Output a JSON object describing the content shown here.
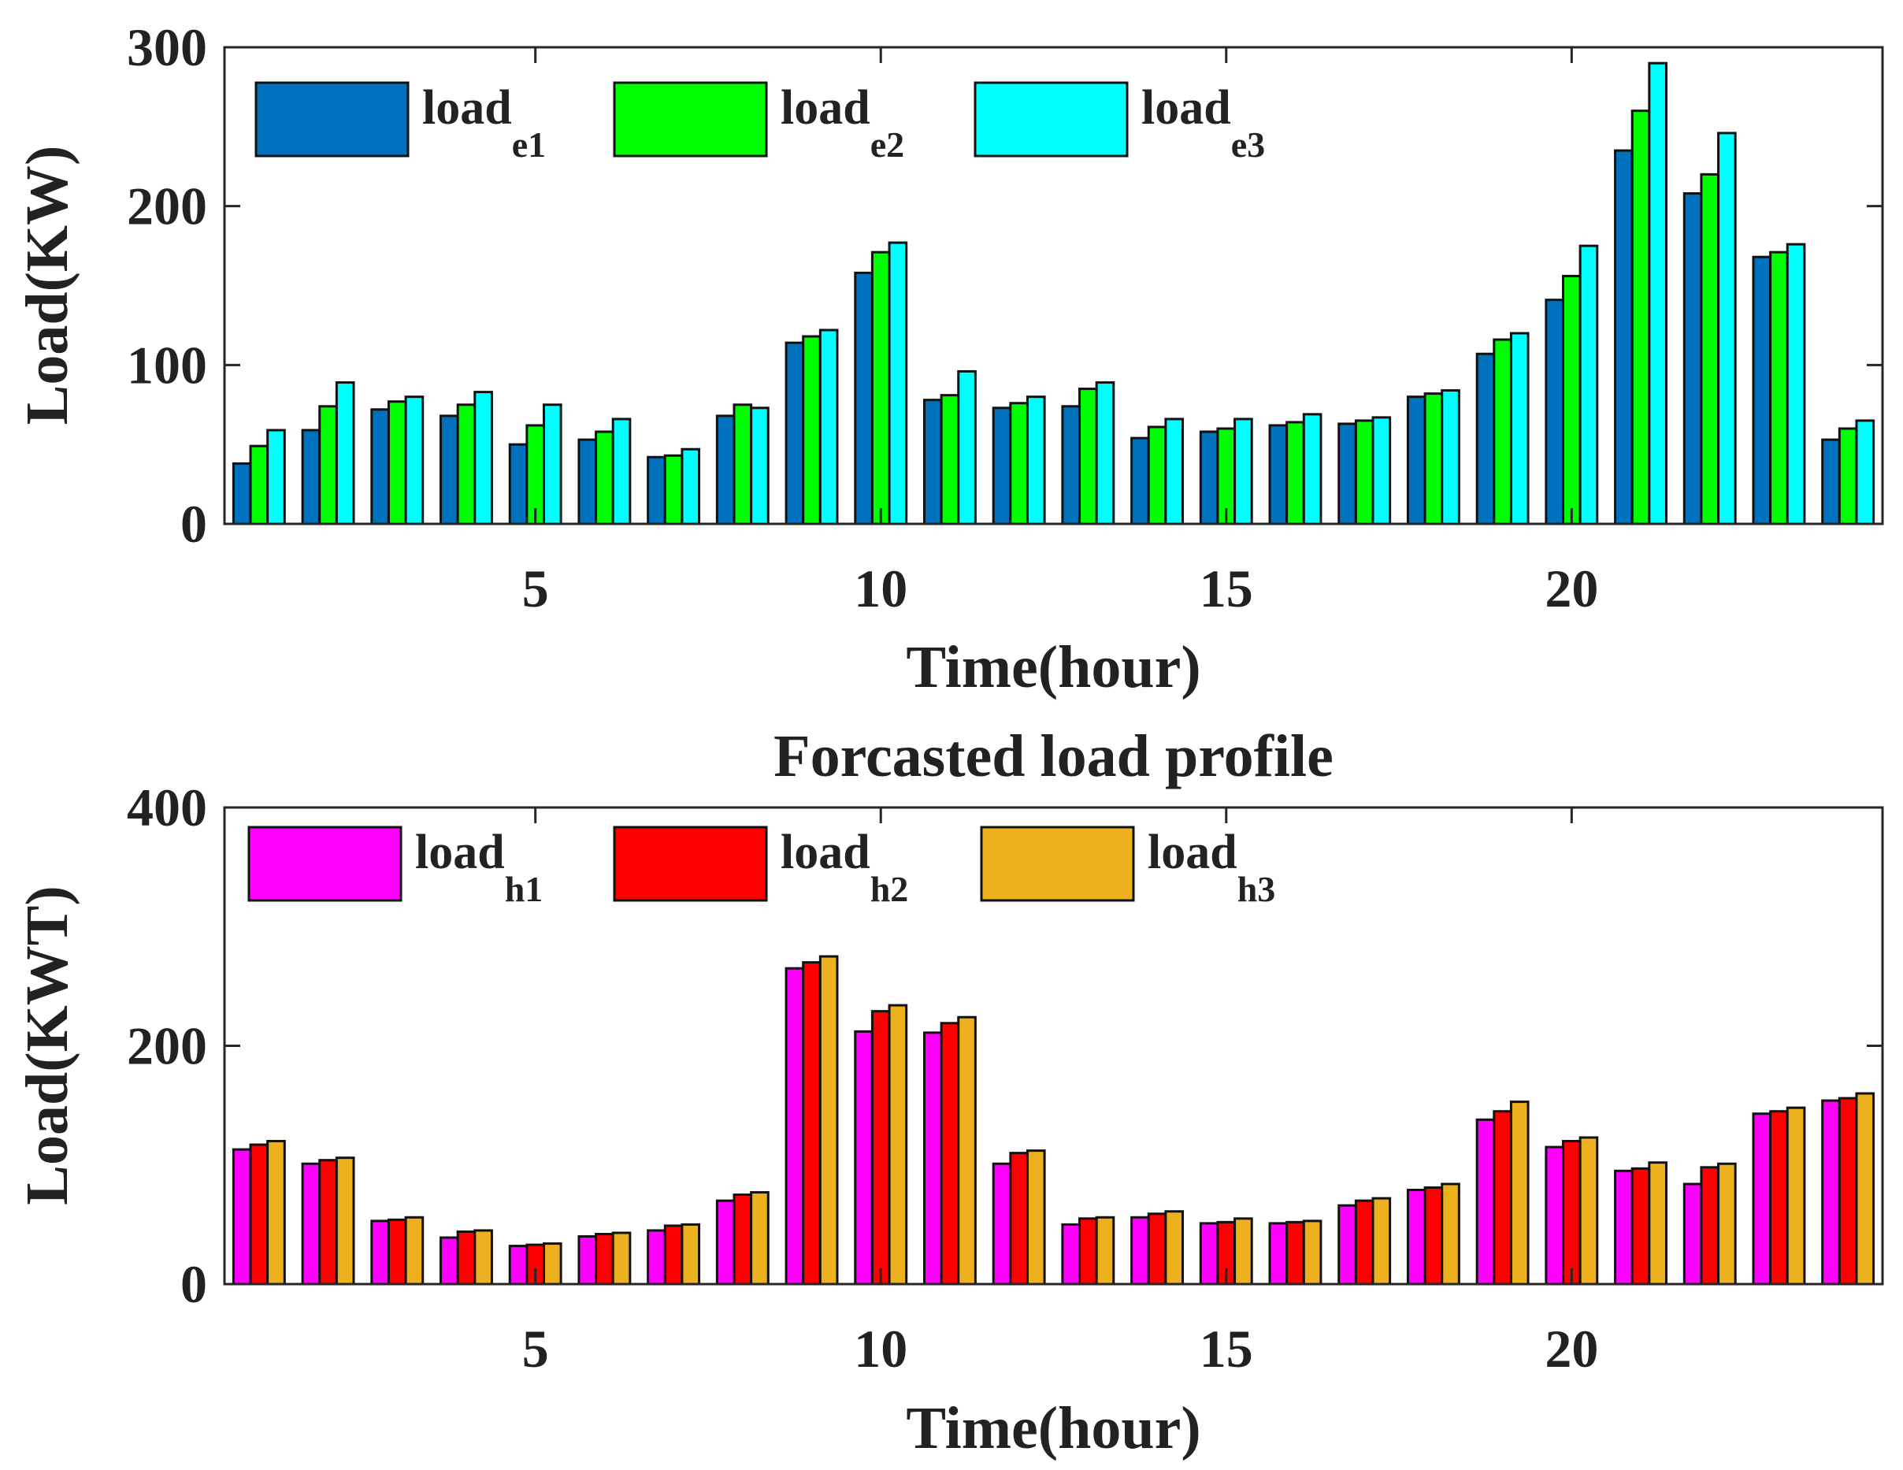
{
  "chart_data": [
    {
      "type": "bar",
      "title": "",
      "xlabel": "Time(hour)",
      "ylabel": "Load(KW)",
      "ylim": [
        0,
        300
      ],
      "yticks": [
        0,
        100,
        200,
        300
      ],
      "xlim": [
        0.5,
        24.5
      ],
      "xticks": [
        5,
        10,
        15,
        20
      ],
      "categories": [
        1,
        2,
        3,
        4,
        5,
        6,
        7,
        8,
        9,
        10,
        11,
        12,
        13,
        14,
        15,
        16,
        17,
        18,
        19,
        20,
        21,
        22,
        23,
        24
      ],
      "series": [
        {
          "name": "load_e1",
          "label": "load",
          "sub": "e1",
          "color": "#0072BD",
          "values": [
            38,
            59,
            72,
            68,
            50,
            53,
            42,
            68,
            114,
            158,
            78,
            73,
            74,
            54,
            58,
            62,
            63,
            80,
            107,
            141,
            235,
            208,
            168,
            53
          ]
        },
        {
          "name": "load_e2",
          "label": "load",
          "sub": "e2",
          "color": "#00FF00",
          "values": [
            49,
            74,
            77,
            75,
            62,
            58,
            43,
            75,
            118,
            171,
            81,
            76,
            85,
            61,
            60,
            64,
            65,
            82,
            116,
            156,
            260,
            220,
            171,
            60
          ]
        },
        {
          "name": "load_e3",
          "label": "load",
          "sub": "e3",
          "color": "#00FFFF",
          "values": [
            59,
            89,
            80,
            83,
            75,
            66,
            47,
            73,
            122,
            177,
            96,
            80,
            89,
            66,
            66,
            69,
            67,
            84,
            120,
            175,
            290,
            246,
            176,
            65
          ]
        }
      ],
      "legend_position": "top-left"
    },
    {
      "type": "bar",
      "title": "Forcasted load profile",
      "xlabel": "Time(hour)",
      "ylabel": "Load(KWT)",
      "ylim": [
        0,
        400
      ],
      "yticks": [
        0,
        200,
        400
      ],
      "xlim": [
        0.5,
        24.5
      ],
      "xticks": [
        5,
        10,
        15,
        20
      ],
      "categories": [
        1,
        2,
        3,
        4,
        5,
        6,
        7,
        8,
        9,
        10,
        11,
        12,
        13,
        14,
        15,
        16,
        17,
        18,
        19,
        20,
        21,
        22,
        23,
        24
      ],
      "series": [
        {
          "name": "load_h1",
          "label": "load",
          "sub": "h1",
          "color": "#FF00FF",
          "values": [
            113,
            101,
            53,
            39,
            32,
            40,
            45,
            70,
            265,
            212,
            211,
            101,
            50,
            56,
            51,
            51,
            66,
            79,
            138,
            115,
            95,
            84,
            143,
            154
          ]
        },
        {
          "name": "load_h2",
          "label": "load",
          "sub": "h2",
          "color": "#FF0000",
          "values": [
            117,
            104,
            54,
            44,
            33,
            42,
            49,
            75,
            270,
            229,
            219,
            110,
            55,
            59,
            52,
            52,
            70,
            81,
            145,
            120,
            97,
            98,
            145,
            156
          ]
        },
        {
          "name": "load_h3",
          "label": "load",
          "sub": "h3",
          "color": "#EDB120",
          "values": [
            120,
            106,
            56,
            45,
            34,
            43,
            50,
            77,
            275,
            234,
            224,
            112,
            56,
            61,
            55,
            53,
            72,
            84,
            153,
            123,
            102,
            101,
            148,
            160
          ]
        }
      ],
      "legend_position": "top-left"
    }
  ]
}
